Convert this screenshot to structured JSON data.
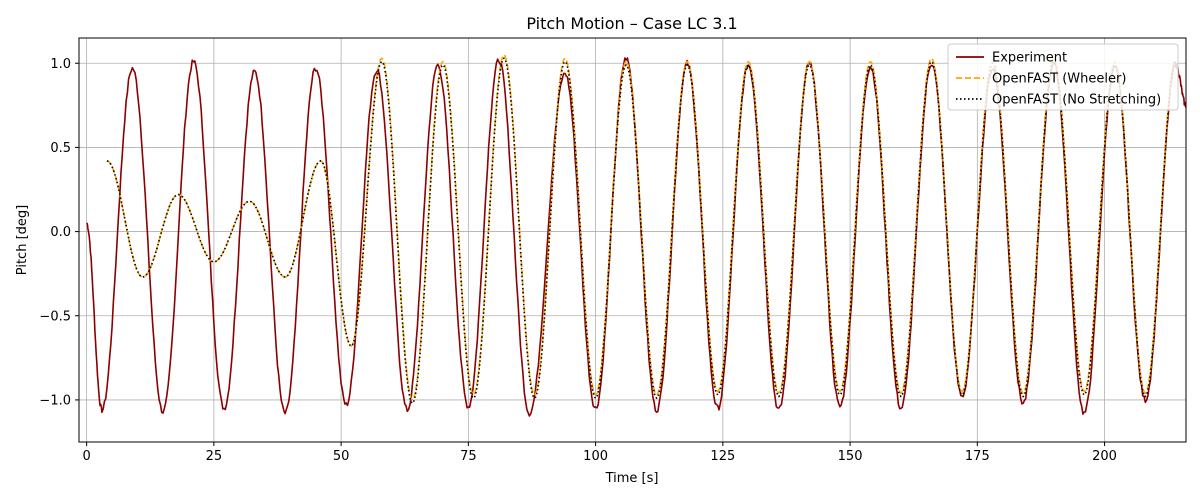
{
  "chart_data": {
    "type": "line",
    "title": "Pitch Motion – Case LC 3.1",
    "xlabel": "Time [s]",
    "ylabel": "Pitch [deg]",
    "xlim": [
      -1.5,
      216
    ],
    "ylim": [
      -1.25,
      1.15
    ],
    "xticks": [
      0,
      25,
      50,
      75,
      100,
      125,
      150,
      175,
      200
    ],
    "yticks": [
      -1.0,
      -0.5,
      0.0,
      0.5,
      1.0
    ],
    "ytick_labels": [
      "−1.0",
      "−0.5",
      "0.0",
      "0.5",
      "1.0"
    ],
    "grid": true,
    "legend_position": "top-right",
    "series": [
      {
        "name": "Experiment",
        "color": "#8b0000",
        "style": "solid",
        "x": [
          0,
          3,
          9,
          15,
          21,
          27,
          33,
          39,
          45,
          51,
          57,
          63,
          69,
          75,
          81,
          87,
          94,
          100,
          106,
          112,
          118,
          124,
          130,
          136,
          142,
          148,
          154,
          160,
          166,
          172,
          178,
          184,
          190,
          196,
          202,
          208,
          214,
          216
        ],
        "y": [
          0.05,
          -1.06,
          0.97,
          -1.07,
          1.01,
          -1.05,
          0.95,
          -1.08,
          0.97,
          -1.03,
          0.96,
          -1.06,
          0.99,
          -1.04,
          1.02,
          -1.08,
          0.94,
          -1.05,
          1.03,
          -1.06,
          1.0,
          -1.05,
          0.99,
          -1.06,
          1.0,
          -1.04,
          0.98,
          -1.05,
          1.0,
          -0.98,
          0.97,
          -1.02,
          1.0,
          -1.08,
          0.98,
          -1.0,
          0.99,
          0.75
        ]
      },
      {
        "name": "OpenFAST (Wheeler)",
        "color": "#ffa500",
        "style": "dashed",
        "x": [
          4,
          11,
          18,
          25,
          32,
          39,
          46,
          52,
          58,
          64,
          70,
          76,
          82,
          88,
          94,
          100,
          106,
          112,
          118,
          124,
          130,
          136,
          142,
          148,
          154,
          160,
          166,
          172,
          178,
          184,
          190,
          196,
          202,
          208,
          214
        ],
        "y": [
          0.42,
          -0.27,
          0.22,
          -0.18,
          0.18,
          -0.27,
          0.42,
          -0.68,
          1.03,
          -1.0,
          1.01,
          -0.97,
          1.05,
          -0.97,
          1.03,
          -0.97,
          1.01,
          -0.97,
          1.01,
          -0.95,
          1.01,
          -0.96,
          1.01,
          -0.95,
          1.01,
          -0.96,
          1.03,
          -0.95,
          1.02,
          -0.96,
          1.03,
          -0.95,
          1.01,
          -0.96,
          1.03
        ]
      },
      {
        "name": "OpenFAST (No Stretching)",
        "color": "#000000",
        "style": "dotted",
        "x": [
          4,
          11,
          18,
          25,
          32,
          39,
          46,
          52,
          58,
          64,
          70,
          76,
          82,
          88,
          94,
          100,
          106,
          112,
          118,
          124,
          130,
          136,
          142,
          148,
          154,
          160,
          166,
          172,
          178,
          184,
          190,
          196,
          202,
          208,
          214
        ],
        "y": [
          0.42,
          -0.27,
          0.22,
          -0.18,
          0.18,
          -0.27,
          0.42,
          -0.68,
          1.01,
          -1.02,
          0.99,
          -0.99,
          1.03,
          -0.99,
          1.01,
          -0.99,
          0.99,
          -0.99,
          0.99,
          -0.97,
          0.99,
          -0.98,
          0.99,
          -0.97,
          0.99,
          -0.98,
          1.01,
          -0.97,
          1.0,
          -0.98,
          1.01,
          -0.97,
          0.99,
          -0.98,
          1.01
        ]
      }
    ]
  }
}
